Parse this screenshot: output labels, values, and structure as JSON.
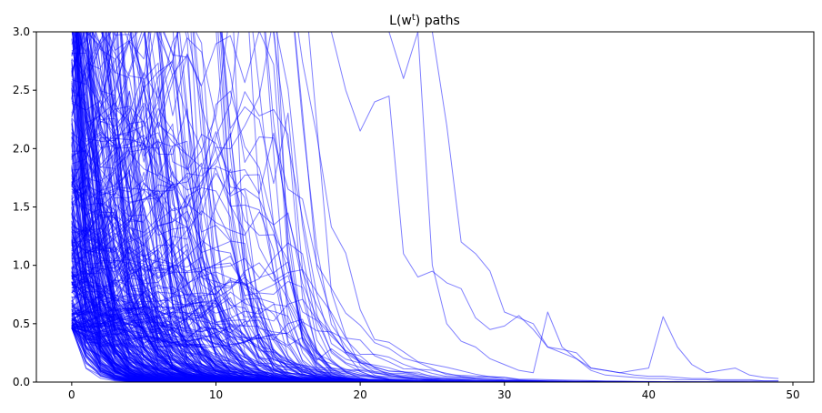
{
  "chart_data": {
    "type": "line",
    "title": {
      "prefix": "L(w",
      "sup": "t",
      "suffix": ") paths"
    },
    "xlabel": "",
    "ylabel": "",
    "xlim": [
      -2.45,
      51.45
    ],
    "ylim": [
      0,
      3.0
    ],
    "xticks": [
      0,
      10,
      20,
      30,
      40,
      50
    ],
    "yticks": [
      0.0,
      0.5,
      1.0,
      1.5,
      2.0,
      2.5,
      3.0
    ],
    "ytick_labels": [
      "0.0",
      "0.5",
      "1.0",
      "1.5",
      "2.0",
      "2.5",
      "3.0"
    ],
    "grid": false,
    "legend": "none",
    "line_color": "#0000ff",
    "line_alpha": 0.5,
    "n_paths_approx": 400,
    "path_length": 50,
    "representative_paths": [
      {
        "name": "",
        "x": [
          0,
          1,
          2,
          3,
          4,
          5,
          6,
          7,
          8,
          9,
          10,
          11,
          12,
          13,
          14,
          15,
          16,
          17,
          18,
          19,
          20,
          21,
          22,
          23,
          24,
          25,
          26,
          27,
          28,
          29,
          30,
          31,
          32,
          33,
          34,
          35,
          36,
          37,
          38,
          39,
          40,
          41,
          42,
          43,
          44,
          45,
          46,
          47,
          48,
          49
        ],
        "y": [
          3.0,
          3.0,
          3.0,
          3.0,
          3.0,
          3.0,
          3.0,
          3.0,
          3.0,
          3.0,
          3.0,
          3.0,
          3.0,
          3.0,
          3.0,
          3.0,
          3.0,
          3.0,
          3.0,
          3.0,
          3.0,
          3.0,
          3.0,
          3.0,
          3.0,
          3.0,
          2.2,
          1.2,
          1.1,
          0.95,
          0.6,
          0.55,
          0.5,
          0.3,
          0.25,
          0.2,
          0.12,
          0.1,
          0.08,
          0.1,
          0.12,
          0.56,
          0.3,
          0.15,
          0.08,
          0.1,
          0.12,
          0.06,
          0.04,
          0.03
        ]
      },
      {
        "name": "",
        "x": [
          0,
          1,
          2,
          3,
          4,
          5,
          6,
          7,
          8,
          9,
          10,
          11,
          12,
          13,
          14,
          15,
          16,
          17,
          18,
          19,
          20,
          21,
          22,
          23,
          24,
          25,
          26,
          27,
          28,
          29,
          30,
          31,
          32,
          33,
          34,
          35,
          36,
          37,
          38,
          39,
          40,
          41,
          42,
          43,
          44,
          45,
          46,
          47,
          48,
          49
        ],
        "y": [
          3.0,
          3.0,
          3.0,
          3.0,
          3.0,
          3.0,
          3.0,
          3.0,
          3.0,
          3.0,
          3.0,
          3.0,
          3.0,
          3.0,
          3.0,
          3.0,
          3.0,
          3.0,
          3.0,
          2.5,
          2.15,
          2.4,
          2.45,
          1.1,
          0.9,
          0.95,
          0.85,
          0.8,
          0.55,
          0.45,
          0.48,
          0.57,
          0.45,
          0.3,
          0.28,
          0.25,
          0.12,
          0.1,
          0.08,
          0.06,
          0.05,
          0.05,
          0.04,
          0.03,
          0.03,
          0.02,
          0.02,
          0.02,
          0.01,
          0.01
        ]
      },
      {
        "name": "",
        "x": [
          0,
          1,
          2,
          3,
          4,
          5,
          6,
          7,
          8,
          9,
          10,
          11,
          12,
          13,
          14,
          15,
          16,
          17,
          18,
          19,
          20,
          21,
          22,
          23,
          24,
          25,
          26,
          27,
          28,
          29,
          30,
          31,
          32,
          33,
          34,
          35,
          36,
          37,
          38,
          39,
          40,
          41,
          42,
          43,
          44,
          45,
          46,
          47,
          48,
          49
        ],
        "y": [
          3.0,
          3.0,
          3.0,
          3.0,
          3.0,
          3.0,
          3.0,
          3.0,
          3.0,
          3.0,
          3.0,
          3.0,
          3.0,
          3.0,
          3.0,
          3.0,
          3.0,
          3.0,
          3.0,
          3.0,
          3.0,
          3.0,
          3.0,
          2.6,
          3.0,
          1.0,
          0.5,
          0.35,
          0.3,
          0.2,
          0.15,
          0.1,
          0.08,
          0.6,
          0.3,
          0.2,
          0.1,
          0.06,
          0.05,
          0.04,
          0.03,
          0.03,
          0.02,
          0.02,
          0.02,
          0.01,
          0.01,
          0.01,
          0.01,
          0.01
        ]
      }
    ]
  }
}
